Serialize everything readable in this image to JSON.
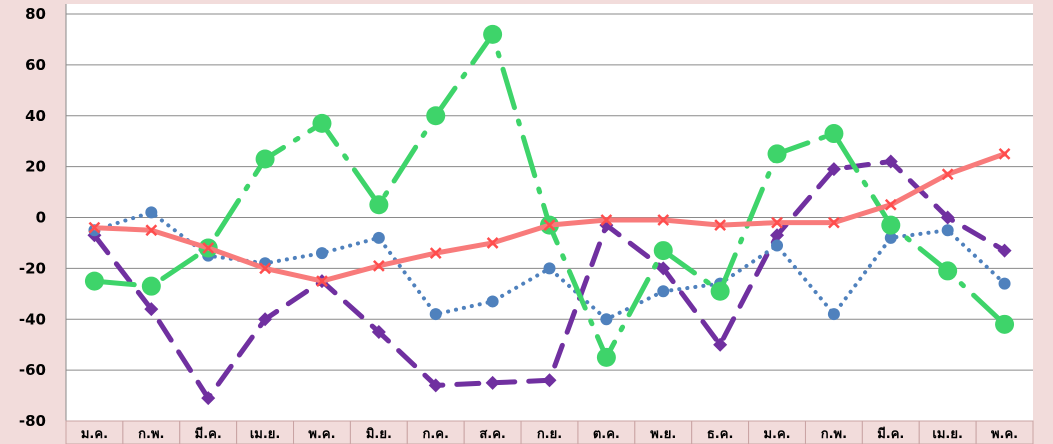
{
  "chart_data": {
    "type": "line",
    "title": "",
    "xlabel": "",
    "ylabel": "",
    "categories": [
      "ม.ค.",
      "ก.พ.",
      "มี.ค.",
      "เม.ย.",
      "พ.ค.",
      "มิ.ย.",
      "ก.ค.",
      "ส.ค.",
      "ก.ย.",
      "ต.ค.",
      "พ.ย.",
      "ธ.ค.",
      "ม.ค.",
      "ก.พ.",
      "มี.ค.",
      "เม.ย.",
      "พ.ค."
    ],
    "ylim": [
      -80,
      80
    ],
    "yticks": [
      -80,
      -60,
      -40,
      -20,
      0,
      20,
      40,
      60,
      80
    ],
    "grid": true,
    "legend": "none",
    "series": [
      {
        "color": "#f87b7b",
        "style": "solid",
        "marker": "x",
        "values": [
          -4,
          -5,
          -12,
          -20,
          -25,
          -19,
          -14,
          -10,
          -3,
          -1,
          -1,
          -3,
          -2,
          -2,
          5,
          17,
          25
        ]
      },
      {
        "color": "#4f81bd",
        "style": "dotted",
        "marker": "circle",
        "values": [
          -5,
          2,
          -15,
          -18,
          -14,
          -8,
          -38,
          -33,
          -20,
          -40,
          -29,
          -26,
          -11,
          -38,
          -8,
          -5,
          -26
        ]
      },
      {
        "color": "#7030a0",
        "style": "dashed",
        "marker": "diamond",
        "values": [
          -7,
          -36,
          -71,
          -40,
          -25,
          -45,
          -66,
          -65,
          -64,
          -3,
          -20,
          -50,
          -7,
          19,
          22,
          0,
          -13
        ]
      },
      {
        "color": "#3ed46a",
        "style": "longdash-dot",
        "marker": "big-circle",
        "values": [
          -25,
          -27,
          -12,
          23,
          37,
          5,
          40,
          72,
          -3,
          -55,
          -13,
          -29,
          25,
          33,
          -3,
          -21,
          -42
        ]
      }
    ]
  }
}
